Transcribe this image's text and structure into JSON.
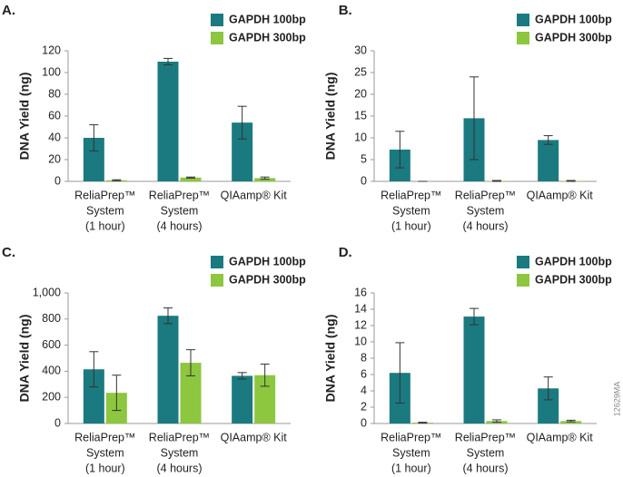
{
  "chart_data": [
    {
      "type": "bar",
      "panel": "A.",
      "ylabel": "DNA Yield (ng)",
      "categories": [
        [
          "ReliaPrep™",
          "System",
          "(1 hour)"
        ],
        [
          "ReliaPrep™",
          "System",
          "(4 hours)"
        ],
        [
          "QIAamp® Kit"
        ]
      ],
      "series": [
        {
          "name": "GAPDH 100bp",
          "color": "#1a7a80",
          "values": [
            40,
            110,
            54
          ],
          "errors": [
            12,
            3,
            15
          ]
        },
        {
          "name": "GAPDH 300bp",
          "color": "#8dc63f",
          "values": [
            1,
            3.5,
            3
          ],
          "errors": [
            0.5,
            0.5,
            1
          ]
        }
      ],
      "ylim": [
        0,
        120
      ],
      "yticks": [
        0,
        20,
        40,
        60,
        80,
        100,
        120
      ]
    },
    {
      "type": "bar",
      "panel": "B.",
      "ylabel": "DNA Yield (ng)",
      "categories": [
        [
          "ReliaPrep™",
          "System",
          "(1 hour)"
        ],
        [
          "ReliaPrep™",
          "System",
          "(4 hours)"
        ],
        [
          "QIAamp® Kit"
        ]
      ],
      "series": [
        {
          "name": "GAPDH 100bp",
          "color": "#1a7a80",
          "values": [
            7.3,
            14.5,
            9.5
          ],
          "errors": [
            4.2,
            9.5,
            1
          ]
        },
        {
          "name": "GAPDH 300bp",
          "color": "#8dc63f",
          "values": [
            0,
            0.1,
            0.1
          ],
          "errors": [
            0,
            0.1,
            0.1
          ]
        }
      ],
      "ylim": [
        0,
        30
      ],
      "yticks": [
        0,
        5,
        10,
        15,
        20,
        25,
        30
      ]
    },
    {
      "type": "bar",
      "panel": "C.",
      "ylabel": "DNA Yield (ng)",
      "categories": [
        [
          "ReliaPrep™",
          "System",
          "(1 hour)"
        ],
        [
          "ReliaPrep™",
          "System",
          "(4 hours)"
        ],
        [
          "QIAamp® Kit"
        ]
      ],
      "series": [
        {
          "name": "GAPDH 100bp",
          "color": "#1a7a80",
          "values": [
            415,
            825,
            365
          ],
          "errors": [
            135,
            60,
            25
          ]
        },
        {
          "name": "GAPDH 300bp",
          "color": "#8dc63f",
          "values": [
            235,
            465,
            370
          ],
          "errors": [
            135,
            100,
            85
          ]
        }
      ],
      "ylim": [
        0,
        1000
      ],
      "yticks": [
        0,
        200,
        400,
        600,
        800,
        {
          "value": 1000,
          "label": "1,000"
        }
      ]
    },
    {
      "type": "bar",
      "panel": "D.",
      "ylabel": "DNA Yield (ng)",
      "categories": [
        [
          "ReliaPrep™",
          "System",
          "(1 hour)"
        ],
        [
          "ReliaPrep™",
          "System",
          "(4 hours)"
        ],
        [
          "QIAamp® Kit"
        ]
      ],
      "series": [
        {
          "name": "GAPDH 100bp",
          "color": "#1a7a80",
          "values": [
            6.2,
            13.1,
            4.3
          ],
          "errors": [
            3.7,
            1.0,
            1.4
          ]
        },
        {
          "name": "GAPDH 300bp",
          "color": "#8dc63f",
          "values": [
            0.1,
            0.3,
            0.3
          ],
          "errors": [
            0.05,
            0.15,
            0.1
          ]
        }
      ],
      "ylim": [
        0,
        16
      ],
      "yticks": [
        0,
        2,
        4,
        6,
        8,
        10,
        12,
        14,
        16
      ]
    }
  ],
  "watermark": "12629MA"
}
